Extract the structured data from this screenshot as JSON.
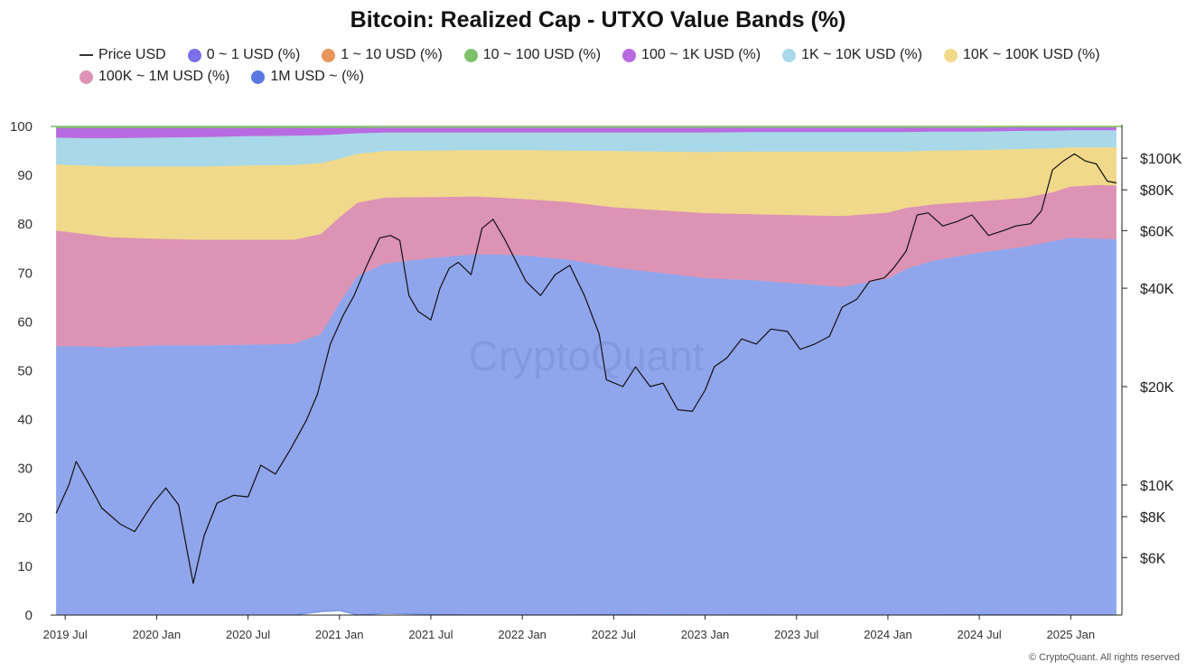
{
  "chart_data": {
    "type": "area",
    "title": "Bitcoin: Realized Cap - UTXO Value Bands (%)",
    "stacked": true,
    "grid": false,
    "legend_position": "top",
    "watermark": "CryptoQuant",
    "footer": "© CryptoQuant. All rights reserved",
    "x_ticks": [
      "2019 Jul",
      "2020 Jan",
      "2020 Jul",
      "2021 Jan",
      "2021 Jul",
      "2022 Jan",
      "2022 Jul",
      "2023 Jan",
      "2023 Jul",
      "2024 Jan",
      "2024 Jul",
      "2025 Jan"
    ],
    "x": [
      2019.45,
      2019.6,
      2019.75,
      2020.0,
      2020.25,
      2020.5,
      2020.75,
      2020.9,
      2021.0,
      2021.1,
      2021.25,
      2021.5,
      2021.75,
      2022.0,
      2022.25,
      2022.5,
      2022.75,
      2023.0,
      2023.25,
      2023.5,
      2023.75,
      2024.0,
      2024.1,
      2024.25,
      2024.5,
      2024.75,
      2024.9,
      2025.0,
      2025.15,
      2025.25
    ],
    "y_left": {
      "label": "",
      "range": [
        0,
        100
      ],
      "ticks": [
        0,
        10,
        20,
        30,
        40,
        50,
        60,
        70,
        80,
        90,
        100
      ]
    },
    "y_right": {
      "label": "",
      "scale": "log",
      "range": [
        4000,
        125000
      ],
      "ticks": [
        6000,
        8000,
        10000,
        20000,
        40000,
        60000,
        80000,
        100000
      ],
      "tick_labels": [
        "$6K",
        "$8K",
        "$10K",
        "$20K",
        "$40K",
        "$60K",
        "$80K",
        "$100K"
      ]
    },
    "series": [
      {
        "name": "0 ~ 1 USD (%)",
        "color": "#7b6fe8",
        "values": [
          0.05,
          0.05,
          0.05,
          0.05,
          0.05,
          0.05,
          0.05,
          0.05,
          0.05,
          0.05,
          0.05,
          0.05,
          0.05,
          0.05,
          0.05,
          0.05,
          0.05,
          0.05,
          0.05,
          0.05,
          0.05,
          0.05,
          0.05,
          0.05,
          0.05,
          0.05,
          0.05,
          0.05,
          0.05,
          0.05
        ]
      },
      {
        "name": "1 ~ 10 USD (%)",
        "color": "#e8965a",
        "values": [
          0.05,
          0.05,
          0.05,
          0.05,
          0.05,
          0.05,
          0.05,
          0.05,
          0.05,
          0.05,
          0.05,
          0.05,
          0.05,
          0.05,
          0.05,
          0.05,
          0.05,
          0.05,
          0.05,
          0.05,
          0.05,
          0.05,
          0.05,
          0.05,
          0.05,
          0.05,
          0.05,
          0.05,
          0.05,
          0.05
        ]
      },
      {
        "name": "10 ~ 100 USD (%)",
        "color": "#7fc16a",
        "values": [
          0.2,
          0.2,
          0.2,
          0.2,
          0.2,
          0.2,
          0.2,
          0.2,
          0.2,
          0.2,
          0.15,
          0.15,
          0.15,
          0.15,
          0.15,
          0.15,
          0.15,
          0.15,
          0.15,
          0.15,
          0.15,
          0.15,
          0.15,
          0.15,
          0.15,
          0.1,
          0.1,
          0.1,
          0.1,
          0.1
        ]
      },
      {
        "name": "100 ~ 1K USD (%)",
        "color": "#b86be0",
        "values": [
          2.0,
          2.1,
          2.1,
          2.0,
          1.9,
          1.7,
          1.6,
          1.5,
          1.3,
          1.1,
          1.0,
          1.0,
          1.0,
          1.0,
          1.0,
          1.0,
          1.0,
          1.0,
          0.9,
          0.9,
          0.9,
          0.9,
          0.9,
          0.8,
          0.8,
          0.7,
          0.7,
          0.6,
          0.6,
          0.6
        ]
      },
      {
        "name": "1K ~ 10K USD (%)",
        "color": "#a9d8e8",
        "values": [
          5.5,
          5.6,
          5.8,
          5.9,
          6.0,
          6.0,
          6.0,
          5.7,
          5.0,
          4.2,
          3.8,
          3.7,
          3.6,
          3.6,
          3.7,
          3.8,
          3.9,
          4.0,
          4.0,
          4.0,
          4.0,
          4.0,
          4.0,
          3.9,
          3.8,
          3.7,
          3.6,
          3.5,
          3.5,
          3.5
        ]
      },
      {
        "name": "10K ~ 100K USD (%)",
        "color": "#f0d98a",
        "values": [
          13.5,
          14.0,
          14.5,
          14.8,
          15.0,
          15.2,
          15.3,
          14.5,
          12.0,
          10.0,
          9.5,
          9.5,
          9.5,
          10.0,
          10.5,
          11.5,
          12.0,
          12.5,
          12.8,
          13.0,
          13.2,
          12.5,
          11.5,
          11.0,
          10.5,
          10.0,
          9.0,
          8.0,
          7.7,
          7.8
        ]
      },
      {
        "name": "100K ~ 1M USD (%)",
        "color": "#dd93b4",
        "values": [
          23.7,
          23.0,
          22.5,
          21.8,
          21.6,
          21.5,
          21.3,
          20.5,
          17.5,
          15.0,
          13.5,
          12.5,
          11.8,
          11.5,
          11.8,
          12.3,
          12.8,
          13.3,
          13.5,
          14.0,
          14.5,
          13.5,
          12.5,
          11.5,
          10.5,
          10.0,
          10.0,
          10.5,
          11.0,
          11.0
        ]
      },
      {
        "name": "1M USD ~ (%)",
        "color": "#5a78e0",
        "fill": "#8fa6ec",
        "values": [
          55.0,
          55.0,
          55.0,
          55.3,
          55.4,
          55.5,
          55.6,
          56.8,
          63.0,
          69.5,
          71.6,
          72.9,
          73.8,
          73.6,
          72.7,
          71.0,
          70.0,
          69.0,
          68.5,
          68.0,
          67.3,
          69.0,
          71.0,
          72.5,
          74.0,
          75.3,
          76.4,
          77.4,
          78.0,
          78.0
        ]
      },
      {
        "name": "Price USD",
        "color": "#111111",
        "axis": "right",
        "x": [
          2019.45,
          2019.52,
          2019.56,
          2019.62,
          2019.7,
          2019.8,
          2019.88,
          2019.98,
          2020.05,
          2020.12,
          2020.2,
          2020.26,
          2020.33,
          2020.42,
          2020.5,
          2020.57,
          2020.65,
          2020.73,
          2020.82,
          2020.88,
          2020.95,
          2021.02,
          2021.08,
          2021.15,
          2021.22,
          2021.28,
          2021.33,
          2021.38,
          2021.43,
          2021.5,
          2021.55,
          2021.6,
          2021.65,
          2021.72,
          2021.78,
          2021.84,
          2021.9,
          2021.96,
          2022.02,
          2022.1,
          2022.18,
          2022.26,
          2022.34,
          2022.42,
          2022.46,
          2022.55,
          2022.62,
          2022.7,
          2022.77,
          2022.85,
          2022.93,
          2023.0,
          2023.05,
          2023.12,
          2023.2,
          2023.28,
          2023.36,
          2023.45,
          2023.52,
          2023.6,
          2023.68,
          2023.75,
          2023.83,
          2023.9,
          2023.98,
          2024.03,
          2024.1,
          2024.16,
          2024.22,
          2024.3,
          2024.38,
          2024.46,
          2024.55,
          2024.63,
          2024.7,
          2024.78,
          2024.84,
          2024.9,
          2024.96,
          2025.02,
          2025.08,
          2025.14,
          2025.2,
          2025.25
        ],
        "values": [
          8200,
          10000,
          11800,
          10300,
          8500,
          7600,
          7200,
          8800,
          9800,
          8700,
          5000,
          7000,
          8800,
          9300,
          9200,
          11500,
          10800,
          12800,
          15800,
          19000,
          27000,
          33000,
          38000,
          47000,
          57000,
          58000,
          56000,
          38000,
          34000,
          32000,
          40000,
          46000,
          48000,
          44000,
          61000,
          65000,
          57000,
          49000,
          42000,
          38000,
          44000,
          47000,
          38000,
          29000,
          21000,
          20000,
          23000,
          20000,
          20500,
          17000,
          16800,
          19500,
          23000,
          24500,
          28000,
          27000,
          30000,
          29500,
          26000,
          27000,
          28500,
          35000,
          37000,
          42000,
          43000,
          46000,
          52000,
          67000,
          68000,
          62000,
          64000,
          67000,
          58000,
          60000,
          62000,
          63000,
          69000,
          92000,
          98000,
          103000,
          98000,
          96000,
          85000,
          84000
        ]
      }
    ]
  },
  "legend_order": [
    "Price USD",
    "0 ~ 1 USD (%)",
    "1 ~ 10 USD (%)",
    "10 ~ 100 USD (%)",
    "100 ~ 1K USD (%)",
    "1K ~ 10K USD (%)",
    "10K ~ 100K USD (%)",
    "100K ~ 1M USD (%)",
    "1M USD ~ (%)"
  ]
}
